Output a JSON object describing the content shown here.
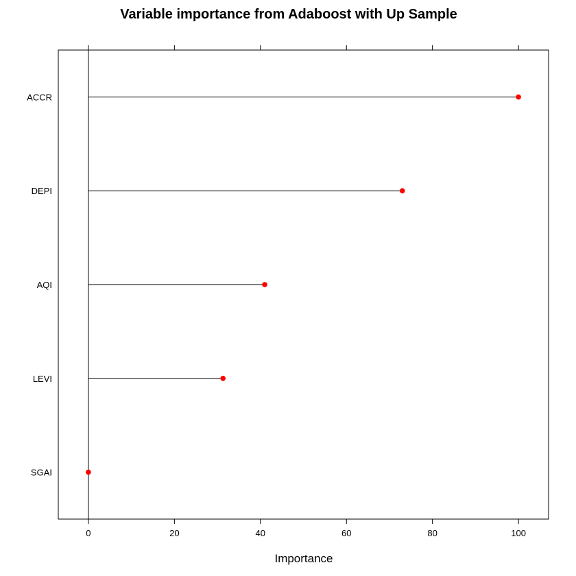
{
  "chart_data": {
    "type": "dotplot",
    "title": "Variable importance from Adaboost with Up Sample",
    "xlabel": "Importance",
    "ylabel": "",
    "categories": [
      "ACCR",
      "DEPI",
      "AQI",
      "LEVI",
      "SGAI"
    ],
    "values": [
      100,
      73,
      41,
      31.3,
      0
    ],
    "xlim": [
      -7,
      107
    ],
    "xticks": [
      0,
      20,
      40,
      60,
      80,
      100
    ],
    "xtick_labels": [
      "0",
      "20",
      "40",
      "60",
      "80",
      "100"
    ],
    "grid": false,
    "legend": "none",
    "colors": {
      "point": "#ff0000",
      "line": "#000000"
    }
  }
}
